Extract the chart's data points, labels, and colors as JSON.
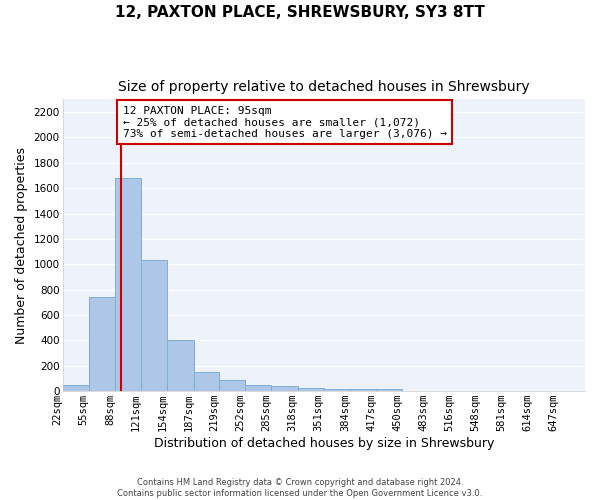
{
  "title": "12, PAXTON PLACE, SHREWSBURY, SY3 8TT",
  "subtitle": "Size of property relative to detached houses in Shrewsbury",
  "xlabel": "Distribution of detached houses by size in Shrewsbury",
  "ylabel": "Number of detached properties",
  "footer_line1": "Contains HM Land Registry data © Crown copyright and database right 2024.",
  "footer_line2": "Contains public sector information licensed under the Open Government Licence v3.0.",
  "bar_edges": [
    22,
    55,
    88,
    121,
    154,
    187,
    219,
    252,
    285,
    318,
    351,
    384,
    417,
    450,
    483,
    516,
    548,
    581,
    614,
    647,
    680
  ],
  "bar_heights": [
    50,
    740,
    1680,
    1030,
    405,
    150,
    85,
    47,
    40,
    27,
    18,
    17,
    17,
    0,
    0,
    0,
    0,
    0,
    0,
    0
  ],
  "bar_color": "#aec6e8",
  "bar_edge_color": "#7bafd4",
  "red_line_x": 95,
  "red_line_color": "#cc0000",
  "annotation_line1": "12 PAXTON PLACE: 95sqm",
  "annotation_line2": "← 25% of detached houses are smaller (1,072)",
  "annotation_line3": "73% of semi-detached houses are larger (3,076) →",
  "annotation_box_color": "#cc0000",
  "ylim": [
    0,
    2300
  ],
  "yticks": [
    0,
    200,
    400,
    600,
    800,
    1000,
    1200,
    1400,
    1600,
    1800,
    2000,
    2200
  ],
  "bg_color": "#edf2fb",
  "grid_color": "#ffffff",
  "title_fontsize": 11,
  "subtitle_fontsize": 10,
  "xlabel_fontsize": 9,
  "ylabel_fontsize": 9,
  "tick_fontsize": 7.5,
  "annotation_fontsize": 8
}
